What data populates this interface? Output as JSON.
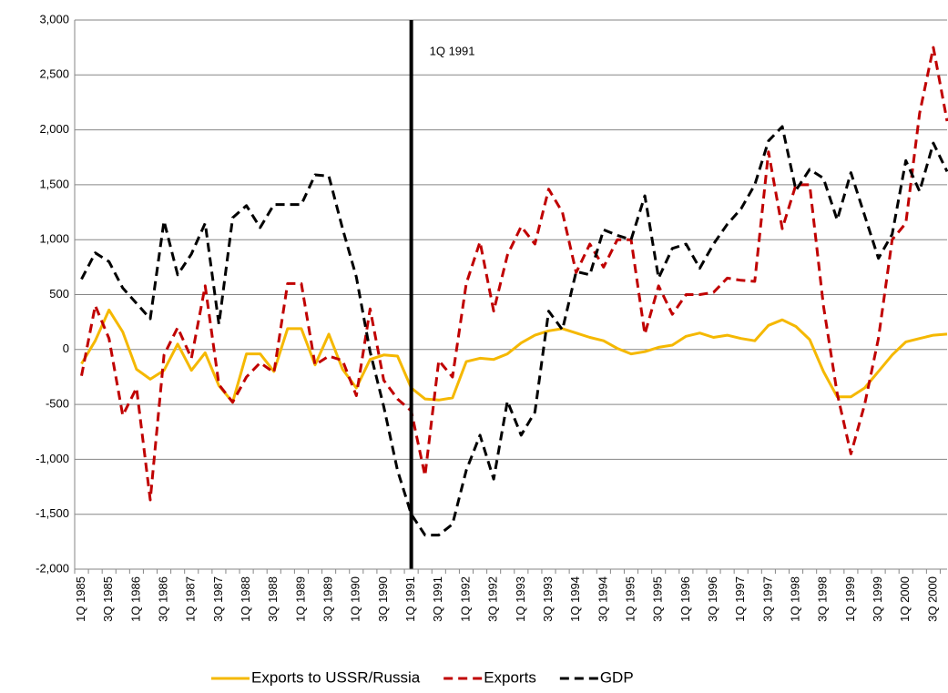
{
  "chart_data": {
    "type": "line",
    "categories": [
      "1Q 1985",
      null,
      "3Q 1985",
      null,
      "1Q 1986",
      null,
      "3Q 1986",
      null,
      "1Q 1987",
      null,
      "3Q 1987",
      null,
      "1Q 1988",
      null,
      "3Q 1988",
      null,
      "1Q 1989",
      null,
      "3Q 1989",
      null,
      "1Q 1990",
      null,
      "3Q 1990",
      null,
      "1Q 1991",
      null,
      "3Q 1991",
      null,
      "1Q 1992",
      null,
      "3Q 1992",
      null,
      "1Q 1993",
      null,
      "3Q 1993",
      null,
      "1Q 1994",
      null,
      "3Q 1994",
      null,
      "1Q 1995",
      null,
      "3Q 1995",
      null,
      "1Q 1996",
      null,
      "3Q 1996",
      null,
      "1Q 1997",
      null,
      "3Q 1997",
      null,
      "1Q 1998",
      null,
      "3Q 1998",
      null,
      "1Q 1999",
      null,
      "3Q 1999",
      null,
      "1Q 2000",
      null,
      "3Q 2000",
      null
    ],
    "series": [
      {
        "name": "Exports to USSR/Russia",
        "color": "#f5b800",
        "dash": "solid",
        "values": [
          -130,
          80,
          360,
          160,
          -180,
          -270,
          -190,
          50,
          -190,
          -30,
          -330,
          -480,
          -40,
          -40,
          -200,
          190,
          190,
          -140,
          140,
          -180,
          -350,
          -90,
          -50,
          -60,
          -350,
          -450,
          -460,
          -440,
          -110,
          -80,
          -90,
          -40,
          60,
          130,
          170,
          190,
          150,
          110,
          80,
          10,
          -40,
          -20,
          20,
          40,
          120,
          150,
          110,
          130,
          100,
          80,
          220,
          270,
          210,
          90,
          -200,
          -430,
          -430,
          -350,
          -200,
          -50,
          70,
          100,
          130,
          140
        ]
      },
      {
        "name": "Exports",
        "color": "#c00000",
        "dash": "dashed",
        "values": [
          -240,
          400,
          100,
          -600,
          -350,
          -1370,
          -50,
          200,
          -80,
          580,
          -320,
          -480,
          -250,
          -120,
          -210,
          600,
          600,
          -140,
          -60,
          -100,
          -420,
          370,
          -280,
          -450,
          -560,
          -1150,
          -100,
          -250,
          600,
          980,
          350,
          860,
          1120,
          960,
          1460,
          1250,
          700,
          960,
          750,
          1000,
          1000,
          140,
          580,
          320,
          500,
          500,
          520,
          650,
          630,
          620,
          1800,
          1100,
          1500,
          1500,
          400,
          -400,
          -950,
          -500,
          100,
          1000,
          1150,
          2150,
          2750,
          2080
        ]
      },
      {
        "name": "GDP",
        "color": "#000000",
        "dash": "dashed",
        "values": [
          640,
          880,
          800,
          560,
          420,
          280,
          1170,
          680,
          870,
          1150,
          230,
          1200,
          1310,
          1110,
          1320,
          1320,
          1320,
          1590,
          1580,
          1100,
          660,
          -20,
          -520,
          -1100,
          -1500,
          -1690,
          -1690,
          -1590,
          -1100,
          -780,
          -1180,
          -470,
          -780,
          -570,
          350,
          180,
          710,
          680,
          1090,
          1040,
          1000,
          1400,
          650,
          920,
          960,
          740,
          960,
          1140,
          1280,
          1500,
          1900,
          2030,
          1450,
          1640,
          1560,
          1180,
          1610,
          1220,
          830,
          1050,
          1720,
          1440,
          1880,
          1620
        ]
      }
    ],
    "ylim": [
      -2000,
      3000
    ],
    "yticks": [
      {
        "value": -2000,
        "label": "-2,000"
      },
      {
        "value": -1500,
        "label": "-1,500"
      },
      {
        "value": -1000,
        "label": "-1,000"
      },
      -500,
      0,
      500,
      {
        "value": 1000,
        "label": "1,000"
      },
      {
        "value": 1500,
        "label": "1,500"
      },
      {
        "value": 2000,
        "label": "2,000"
      },
      {
        "value": 2500,
        "label": "2,500"
      },
      {
        "value": 3000,
        "label": "3,000"
      }
    ],
    "grid": true,
    "legend": "bottom",
    "annotation": {
      "x": "1Q 1991",
      "text": "1Q 1991"
    }
  }
}
